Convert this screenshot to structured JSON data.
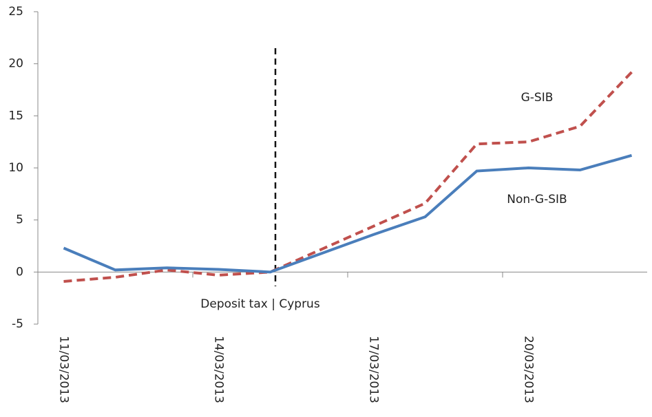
{
  "chart_data": {
    "type": "line",
    "categories": [
      "11/03/2013",
      null,
      null,
      "14/03/2013",
      null,
      null,
      "17/03/2013",
      null,
      null,
      "20/03/2013",
      null,
      null
    ],
    "series": [
      {
        "name": "G-SIB",
        "color": "#c0504d",
        "dash": true,
        "values": [
          -0.9,
          -0.5,
          0.2,
          -0.3,
          0.0,
          2.2,
          4.4,
          6.6,
          12.3,
          12.5,
          14.0,
          19.2
        ]
      },
      {
        "name": "Non-G-SIB",
        "color": "#4a7ebb",
        "dash": false,
        "values": [
          2.3,
          0.2,
          0.4,
          0.25,
          0.0,
          1.8,
          3.6,
          5.3,
          9.7,
          10.0,
          9.8,
          11.2
        ]
      }
    ],
    "ylim": [
      -5,
      25
    ],
    "yticks": [
      -5,
      0,
      5,
      10,
      15,
      20,
      25
    ],
    "grid": false,
    "annotations": [
      "Deposit tax | Cyprus"
    ]
  }
}
